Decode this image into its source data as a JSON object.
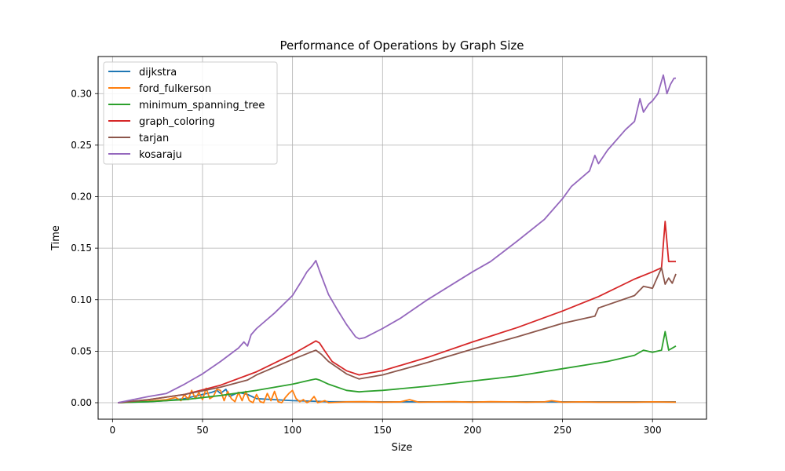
{
  "chart_data": {
    "type": "line",
    "title": "Performance of Operations by Graph Size",
    "xlabel": "Size",
    "ylabel": "Time",
    "xlim": [
      -8,
      330
    ],
    "ylim": [
      -0.016,
      0.336
    ],
    "xticks": [
      0,
      50,
      100,
      150,
      200,
      250,
      300
    ],
    "xtick_labels": [
      "0",
      "50",
      "100",
      "150",
      "200",
      "250",
      "300"
    ],
    "yticks": [
      0.0,
      0.05,
      0.1,
      0.15,
      0.2,
      0.25,
      0.3
    ],
    "ytick_labels": [
      "0.00",
      "0.05",
      "0.10",
      "0.15",
      "0.20",
      "0.25",
      "0.30"
    ],
    "grid": true,
    "legend_position": "top-left",
    "series": [
      {
        "name": "dijkstra",
        "color": "#1f77b4",
        "x": [
          3,
          10,
          20,
          30,
          40,
          45,
          50,
          55,
          58,
          60,
          63,
          65,
          70,
          75,
          80,
          90,
          100,
          110,
          120,
          150,
          200,
          250,
          300,
          313
        ],
        "y": [
          0.0,
          0.0005,
          0.001,
          0.002,
          0.004,
          0.006,
          0.008,
          0.01,
          0.012,
          0.009,
          0.013,
          0.006,
          0.01,
          0.008,
          0.004,
          0.003,
          0.002,
          0.0015,
          0.001,
          0.0008,
          0.0008,
          0.0008,
          0.0008,
          0.0008
        ]
      },
      {
        "name": "ford_fulkerson",
        "color": "#ff7f0e",
        "x": [
          3,
          10,
          20,
          30,
          35,
          38,
          40,
          42,
          44,
          46,
          48,
          50,
          52,
          54,
          56,
          58,
          60,
          62,
          64,
          66,
          68,
          70,
          72,
          74,
          76,
          78,
          80,
          82,
          84,
          86,
          88,
          90,
          92,
          94,
          96,
          98,
          100,
          102,
          104,
          106,
          108,
          110,
          112,
          114,
          116,
          118,
          120,
          130,
          140,
          150,
          160,
          165,
          170,
          180,
          190,
          200,
          210,
          220,
          230,
          240,
          244,
          250,
          260,
          270,
          280,
          290,
          300,
          313
        ],
        "y": [
          0.0,
          0.0005,
          0.0015,
          0.003,
          0.005,
          0.002,
          0.008,
          0.003,
          0.012,
          0.004,
          0.01,
          0.003,
          0.014,
          0.004,
          0.006,
          0.013,
          0.012,
          0.002,
          0.011,
          0.004,
          0.001,
          0.01,
          0.002,
          0.011,
          0.002,
          0.0,
          0.008,
          0.001,
          0.0,
          0.009,
          0.002,
          0.011,
          0.001,
          0.0,
          0.005,
          0.009,
          0.012,
          0.004,
          0.001,
          0.003,
          0.0,
          0.002,
          0.006,
          0.0,
          0.001,
          0.002,
          0.0,
          0.0008,
          0.001,
          0.0005,
          0.0008,
          0.003,
          0.0005,
          0.0008,
          0.001,
          0.0005,
          0.001,
          0.0008,
          0.0005,
          0.0008,
          0.002,
          0.0005,
          0.0008,
          0.0005,
          0.0005,
          0.0005,
          0.0008,
          0.0005
        ]
      },
      {
        "name": "minimum_spanning_tree",
        "color": "#2ca02c",
        "x": [
          3,
          20,
          40,
          60,
          80,
          100,
          105,
          110,
          113,
          115,
          120,
          130,
          137,
          140,
          150,
          175,
          200,
          225,
          250,
          275,
          290,
          295,
          300,
          305,
          307,
          309,
          313
        ],
        "y": [
          0.0,
          0.001,
          0.003,
          0.007,
          0.012,
          0.018,
          0.02,
          0.022,
          0.023,
          0.022,
          0.018,
          0.012,
          0.0105,
          0.011,
          0.012,
          0.016,
          0.021,
          0.026,
          0.033,
          0.04,
          0.046,
          0.051,
          0.049,
          0.051,
          0.069,
          0.051,
          0.055
        ]
      },
      {
        "name": "graph_coloring",
        "color": "#d62728",
        "x": [
          3,
          20,
          40,
          60,
          80,
          100,
          110,
          113,
          115,
          118,
          122,
          130,
          137,
          140,
          150,
          175,
          200,
          225,
          250,
          270,
          290,
          300,
          305,
          307,
          309,
          313
        ],
        "y": [
          0.0,
          0.003,
          0.008,
          0.017,
          0.03,
          0.047,
          0.057,
          0.06,
          0.058,
          0.05,
          0.04,
          0.031,
          0.027,
          0.028,
          0.031,
          0.044,
          0.059,
          0.073,
          0.089,
          0.103,
          0.12,
          0.127,
          0.131,
          0.176,
          0.137,
          0.137
        ]
      },
      {
        "name": "tarjan",
        "color": "#8c564b",
        "x": [
          3,
          20,
          40,
          60,
          75,
          80,
          100,
          110,
          113,
          116,
          120,
          130,
          137,
          140,
          150,
          175,
          200,
          225,
          250,
          268,
          270,
          290,
          295,
          300,
          305,
          307,
          309,
          311,
          313
        ],
        "y": [
          0.0,
          0.003,
          0.008,
          0.015,
          0.022,
          0.027,
          0.042,
          0.049,
          0.051,
          0.047,
          0.04,
          0.028,
          0.023,
          0.024,
          0.027,
          0.039,
          0.052,
          0.064,
          0.077,
          0.084,
          0.092,
          0.104,
          0.113,
          0.111,
          0.131,
          0.115,
          0.121,
          0.116,
          0.125
        ]
      },
      {
        "name": "kosaraju",
        "color": "#9467bd",
        "x": [
          3,
          20,
          30,
          40,
          50,
          60,
          70,
          73,
          75,
          77,
          80,
          90,
          100,
          105,
          108,
          111,
          113,
          115,
          120,
          125,
          130,
          135,
          137,
          140,
          150,
          160,
          175,
          200,
          210,
          225,
          240,
          250,
          255,
          265,
          268,
          270,
          275,
          285,
          290,
          293,
          295,
          298,
          300,
          303,
          305,
          306,
          308,
          310,
          312,
          313
        ],
        "y": [
          0.0,
          0.006,
          0.009,
          0.018,
          0.028,
          0.04,
          0.053,
          0.059,
          0.055,
          0.066,
          0.072,
          0.087,
          0.104,
          0.118,
          0.127,
          0.133,
          0.138,
          0.128,
          0.105,
          0.09,
          0.076,
          0.064,
          0.062,
          0.063,
          0.072,
          0.082,
          0.1,
          0.127,
          0.137,
          0.157,
          0.178,
          0.198,
          0.21,
          0.225,
          0.24,
          0.232,
          0.245,
          0.265,
          0.273,
          0.295,
          0.282,
          0.29,
          0.293,
          0.3,
          0.312,
          0.318,
          0.3,
          0.309,
          0.315,
          0.315
        ]
      }
    ]
  }
}
